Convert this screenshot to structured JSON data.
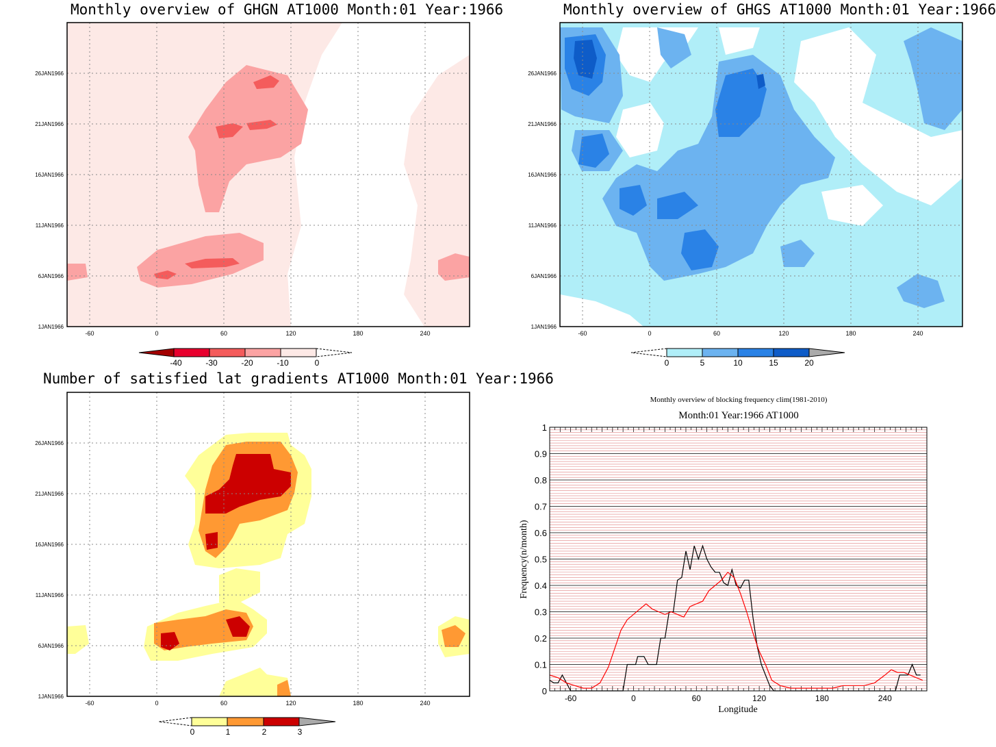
{
  "charts": {
    "ghgn": {
      "title": "Monthly overview of GHGN AT1000 Month:01 Year:1966",
      "colorbar_labels": [
        "-40",
        "-30",
        "-20",
        "-10",
        "0"
      ],
      "colors": {
        "c1": "#fde9e6",
        "c2": "#fba3a3",
        "c3": "#f45c5c",
        "c4": "#e8002e",
        "c5": "#a30000"
      }
    },
    "ghgs": {
      "title": "Monthly overview of GHGS AT1000 Month:01 Year:1966",
      "colorbar_labels": [
        "0",
        "5",
        "10",
        "15",
        "20"
      ],
      "colors": {
        "c1": "#b0eef8",
        "c2": "#6cb3f0",
        "c3": "#2a82e6",
        "c4": "#0e5cc8",
        "c5": "#aaaaaa"
      }
    },
    "lat": {
      "title": "Number of satisfied lat gradients AT1000 Month:01 Year:1966",
      "colorbar_labels": [
        "0",
        "1",
        "2",
        "3"
      ],
      "colors": {
        "c1": "#ffff99",
        "c2": "#ff9933",
        "c3": "#cc0000",
        "c4": "#aaaaaa"
      }
    },
    "freq": {
      "title_line1": "Monthly overview of blocking frequency clim(1981-2010)",
      "title_line2": "Month:01 Year:1966  AT1000",
      "xlabel": "Longitude",
      "ylabel": "Frequency(n/month)"
    }
  },
  "map_axes": {
    "x_ticks": [
      "-60",
      "0",
      "60",
      "120",
      "180",
      "240"
    ],
    "y_ticks": [
      "1JAN1966",
      "6JAN1966",
      "11JAN1966",
      "16JAN1966",
      "21JAN1966",
      "26JAN1966"
    ]
  },
  "chart_data": [
    {
      "type": "heatmap",
      "title": "Monthly overview of GHGN AT1000 Month:01 Year:1966",
      "xlim": [
        -80,
        280
      ],
      "ylim": [
        "1JAN1966",
        "31JAN1966"
      ],
      "x_ticks": [
        -60,
        0,
        60,
        120,
        180,
        240
      ],
      "levels": [
        -40,
        -30,
        -20,
        -10,
        0
      ],
      "grid": true
    },
    {
      "type": "heatmap",
      "title": "Monthly overview of GHGS AT1000 Month:01 Year:1966",
      "xlim": [
        -80,
        280
      ],
      "ylim": [
        "1JAN1966",
        "31JAN1966"
      ],
      "x_ticks": [
        -60,
        0,
        60,
        120,
        180,
        240
      ],
      "levels": [
        0,
        5,
        10,
        15,
        20
      ],
      "grid": true
    },
    {
      "type": "heatmap",
      "title": "Number of satisfied lat gradients AT1000 Month:01 Year:1966",
      "xlim": [
        -80,
        280
      ],
      "ylim": [
        "1JAN1966",
        "31JAN1966"
      ],
      "x_ticks": [
        -60,
        0,
        60,
        120,
        180,
        240
      ],
      "levels": [
        0,
        1,
        2,
        3
      ],
      "grid": true
    },
    {
      "type": "line",
      "title": "Monthly overview of blocking frequency clim(1981-2010)",
      "subtitle": "Month:01 Year:1966  AT1000",
      "xlabel": "Longitude",
      "ylabel": "Frequency(n/month)",
      "xlim": [
        -80,
        280
      ],
      "ylim": [
        0,
        1
      ],
      "x_ticks": [
        -60,
        0,
        60,
        120,
        180,
        240
      ],
      "y_ticks": [
        0,
        0.1,
        0.2,
        0.3,
        0.4,
        0.5,
        0.6,
        0.7,
        0.8,
        0.9,
        1
      ],
      "grid": true,
      "series": [
        {
          "color": "#000000",
          "points": [
            [
              -80,
              0.04
            ],
            [
              -76,
              0.03
            ],
            [
              -72,
              0.03
            ],
            [
              -68,
              0.06
            ],
            [
              -64,
              0.03
            ],
            [
              -60,
              0
            ],
            [
              -20,
              0
            ],
            [
              -10,
              0
            ],
            [
              -6,
              0.1
            ],
            [
              2,
              0.1
            ],
            [
              4,
              0.13
            ],
            [
              10,
              0.13
            ],
            [
              14,
              0.1
            ],
            [
              22,
              0.1
            ],
            [
              26,
              0.2
            ],
            [
              30,
              0.2
            ],
            [
              34,
              0.3
            ],
            [
              38,
              0.3
            ],
            [
              42,
              0.42
            ],
            [
              46,
              0.43
            ],
            [
              50,
              0.53
            ],
            [
              54,
              0.46
            ],
            [
              58,
              0.55
            ],
            [
              62,
              0.5
            ],
            [
              66,
              0.55
            ],
            [
              70,
              0.5
            ],
            [
              74,
              0.47
            ],
            [
              78,
              0.45
            ],
            [
              82,
              0.45
            ],
            [
              86,
              0.41
            ],
            [
              90,
              0.4
            ],
            [
              94,
              0.46
            ],
            [
              98,
              0.4
            ],
            [
              102,
              0.39
            ],
            [
              106,
              0.42
            ],
            [
              110,
              0.42
            ],
            [
              114,
              0.28
            ],
            [
              118,
              0.17
            ],
            [
              122,
              0.1
            ],
            [
              126,
              0.06
            ],
            [
              130,
              0.02
            ],
            [
              134,
              0
            ],
            [
              250,
              0
            ],
            [
              254,
              0.06
            ],
            [
              258,
              0.06
            ],
            [
              262,
              0.06
            ],
            [
              266,
              0.1
            ],
            [
              270,
              0.06
            ],
            [
              274,
              0.06
            ]
          ]
        },
        {
          "color": "#ff0000",
          "points": [
            [
              -80,
              0.06
            ],
            [
              -72,
              0.05
            ],
            [
              -64,
              0.03
            ],
            [
              -56,
              0.02
            ],
            [
              -48,
              0.01
            ],
            [
              -40,
              0.01
            ],
            [
              -32,
              0.03
            ],
            [
              -24,
              0.09
            ],
            [
              -18,
              0.16
            ],
            [
              -12,
              0.23
            ],
            [
              -6,
              0.27
            ],
            [
              0,
              0.29
            ],
            [
              6,
              0.31
            ],
            [
              12,
              0.33
            ],
            [
              18,
              0.31
            ],
            [
              24,
              0.3
            ],
            [
              30,
              0.29
            ],
            [
              36,
              0.3
            ],
            [
              42,
              0.29
            ],
            [
              48,
              0.28
            ],
            [
              54,
              0.32
            ],
            [
              60,
              0.33
            ],
            [
              66,
              0.34
            ],
            [
              72,
              0.38
            ],
            [
              78,
              0.4
            ],
            [
              84,
              0.42
            ],
            [
              90,
              0.45
            ],
            [
              96,
              0.43
            ],
            [
              102,
              0.37
            ],
            [
              108,
              0.3
            ],
            [
              114,
              0.22
            ],
            [
              120,
              0.15
            ],
            [
              126,
              0.1
            ],
            [
              132,
              0.04
            ],
            [
              140,
              0.02
            ],
            [
              150,
              0.01
            ],
            [
              160,
              0.01
            ],
            [
              170,
              0.01
            ],
            [
              180,
              0.01
            ],
            [
              190,
              0.01
            ],
            [
              200,
              0.02
            ],
            [
              210,
              0.02
            ],
            [
              220,
              0.02
            ],
            [
              230,
              0.03
            ],
            [
              240,
              0.06
            ],
            [
              246,
              0.08
            ],
            [
              252,
              0.07
            ],
            [
              258,
              0.07
            ],
            [
              264,
              0.06
            ],
            [
              270,
              0.05
            ],
            [
              276,
              0.04
            ]
          ]
        }
      ]
    }
  ]
}
